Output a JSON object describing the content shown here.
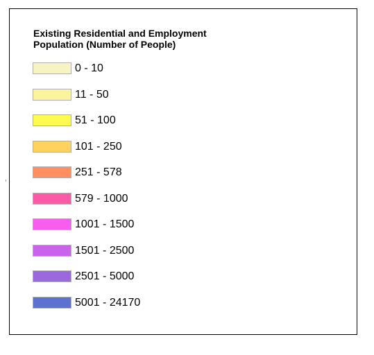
{
  "legend": {
    "title_line1": "Existing Residential and Employment",
    "title_line2": "Population (Number of People)",
    "items": [
      {
        "label": "0 - 10",
        "color": "#f7f3c3"
      },
      {
        "label": "11 - 50",
        "color": "#fbf49c"
      },
      {
        "label": "51 - 100",
        "color": "#fdfa50"
      },
      {
        "label": "101 - 250",
        "color": "#ffd15f"
      },
      {
        "label": "251 - 578",
        "color": "#ff8f5f"
      },
      {
        "label": "579 - 1000",
        "color": "#fb5ba6"
      },
      {
        "label": "1001 - 1500",
        "color": "#f75ef0"
      },
      {
        "label": "1501 - 2500",
        "color": "#c964ea"
      },
      {
        "label": "2501 - 5000",
        "color": "#9a69dd"
      },
      {
        "label": "5001 - 24170",
        "color": "#5d71d0"
      }
    ]
  }
}
